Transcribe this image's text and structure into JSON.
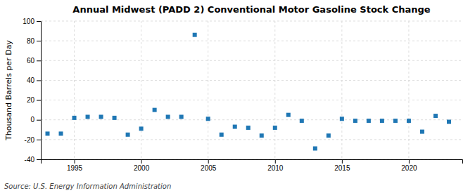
{
  "chart_data": {
    "type": "scatter",
    "title": "Annual Midwest (PADD 2) Conventional Motor Gasoline Stock Change",
    "ylabel": "Thousand Barrels per Day",
    "annotations": [
      "Source: U.S. Energy Information Administration"
    ],
    "x": [
      1993,
      1994,
      1995,
      1996,
      1997,
      1998,
      1999,
      2000,
      2001,
      2002,
      2003,
      2004,
      2005,
      2006,
      2007,
      2008,
      2009,
      2010,
      2011,
      2012,
      2013,
      2014,
      2015,
      2016,
      2017,
      2018,
      2019,
      2020,
      2021,
      2022,
      2023
    ],
    "values": [
      -14,
      -14,
      2,
      3,
      3,
      2,
      -15,
      -9,
      10,
      3,
      3,
      86,
      1,
      -15,
      -7,
      -8,
      -16,
      -8,
      5,
      -1,
      -29,
      -16,
      1,
      -1,
      -1,
      -1,
      -1,
      -1,
      -12,
      4,
      -2
    ],
    "xlim": [
      1992.5,
      2024
    ],
    "ylim": [
      -40,
      100
    ],
    "xticks": [
      1995,
      2000,
      2005,
      2010,
      2015,
      2020
    ],
    "yticks": [
      -40,
      -20,
      0,
      20,
      40,
      60,
      80,
      100
    ],
    "grid": true,
    "marker": "square"
  }
}
